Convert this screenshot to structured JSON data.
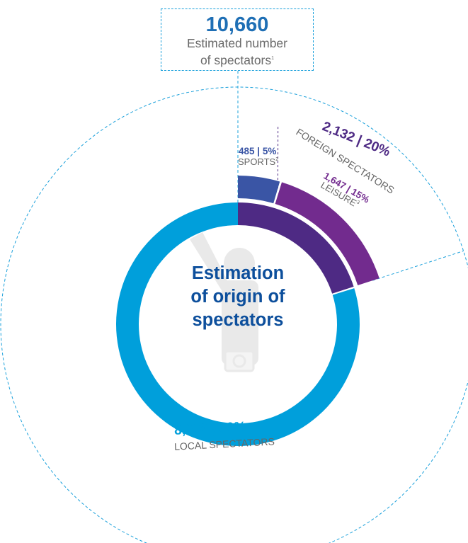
{
  "header": {
    "total_value": "10,660",
    "total_label_line1": "Estimated number",
    "total_label_line2": "of spectators",
    "total_label_sup": "1"
  },
  "center_title_lines": [
    "Estimation",
    "of origin of",
    "spectators"
  ],
  "colors": {
    "local": "#009fdb",
    "foreign": "#4e2a84",
    "sports": "#3a55a5",
    "leisure": "#722b8e",
    "guide": "#1aa0db",
    "pictogram": "#e9e9e9"
  },
  "icon": "spectator-with-camera-pictogram",
  "chart_data": {
    "type": "pie",
    "title": "Estimation of origin of spectators",
    "total": 10660,
    "slices": [
      {
        "key": "local",
        "label": "LOCAL SPECTATORS",
        "value": 8528,
        "percent": 80,
        "value_text": "8,528",
        "percent_text": "80%"
      },
      {
        "key": "foreign",
        "label": "FOREIGN SPECTATORS",
        "value": 2132,
        "percent": 20,
        "value_text": "2,132",
        "percent_text": "20%",
        "breakdown": [
          {
            "key": "sports",
            "label": "SPORTS",
            "sup": "2",
            "value": 485,
            "percent": 5,
            "value_text": "485",
            "percent_text": "5%"
          },
          {
            "key": "leisure",
            "label": "LEISURE",
            "sup": "3",
            "value": 1647,
            "percent": 15,
            "value_text": "1,647",
            "percent_text": "15%"
          }
        ]
      }
    ]
  }
}
